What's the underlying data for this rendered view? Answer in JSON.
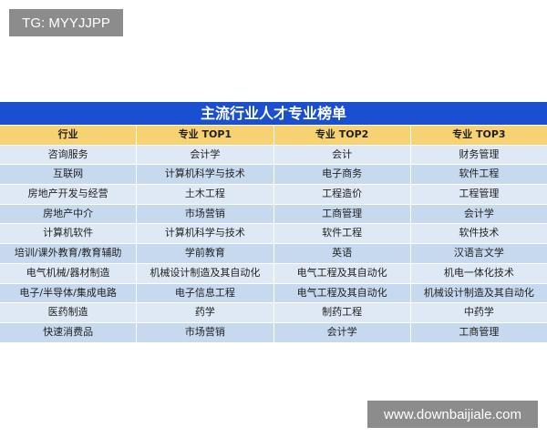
{
  "watermarks": {
    "tg": "TG: MYYJJPP",
    "site": "www.downbaijiale.com"
  },
  "table": {
    "title": "主流行业人才专业榜单",
    "headers": [
      "行业",
      "专业 TOP1",
      "专业 TOP2",
      "专业 TOP3"
    ],
    "rows": [
      [
        "咨询服务",
        "会计学",
        "会计",
        "财务管理"
      ],
      [
        "互联网",
        "计算机科学与技术",
        "电子商务",
        "软件工程"
      ],
      [
        "房地产开发与经营",
        "土木工程",
        "工程造价",
        "工程管理"
      ],
      [
        "房地产中介",
        "市场营销",
        "工商管理",
        "会计学"
      ],
      [
        "计算机软件",
        "计算机科学与技术",
        "软件工程",
        "软件技术"
      ],
      [
        "培训/课外教育/教育辅助",
        "学前教育",
        "英语",
        "汉语言文学"
      ],
      [
        "电气机械/器材制造",
        "机械设计制造及其自动化",
        "电气工程及其自动化",
        "机电一体化技术"
      ],
      [
        "电子/半导体/集成电路",
        "电子信息工程",
        "电气工程及其自动化",
        "机械设计制造及其自动化"
      ],
      [
        "医药制造",
        "药学",
        "制药工程",
        "中药学"
      ],
      [
        "快速消费品",
        "市场营销",
        "会计学",
        "工商管理"
      ]
    ]
  },
  "colors": {
    "title_bg": "#1b4fd2",
    "header_bg": "#f6d273",
    "row_light": "#dfe9f5",
    "row_dark": "#c7d9ee"
  }
}
